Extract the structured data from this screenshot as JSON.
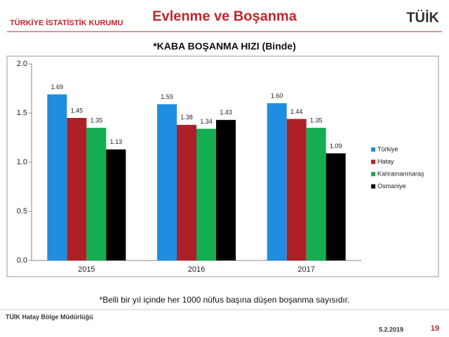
{
  "header": {
    "org": "TÜRKİYE İSTATİSTİK KURUMU",
    "title": "Evlenme ve Boşanma",
    "logo": "TÜİK"
  },
  "chart_data": {
    "type": "bar",
    "title": "*KABA BOŞANMA HIZI (Binde)",
    "categories": [
      "2015",
      "2016",
      "2017"
    ],
    "series": [
      {
        "name": "Türkiye",
        "color": "#1f8ee0",
        "values": [
          1.69,
          1.59,
          1.6
        ],
        "value_labels": [
          "1.69",
          "1.59",
          "1.60"
        ]
      },
      {
        "name": "Hatay",
        "color": "#ad2027",
        "values": [
          1.45,
          1.38,
          1.44
        ],
        "value_labels": [
          "1.45",
          "1.38",
          "1.44"
        ]
      },
      {
        "name": "Kahramanmaraş",
        "color": "#14ad52",
        "values": [
          1.35,
          1.34,
          1.35
        ],
        "value_labels": [
          "1.35",
          "1.34",
          "1.35"
        ]
      },
      {
        "name": "Osmaniye",
        "color": "#000000",
        "values": [
          1.13,
          1.43,
          1.09
        ],
        "value_labels": [
          "1.13",
          "1.43",
          "1.09"
        ]
      }
    ],
    "ylim": [
      0,
      2
    ],
    "yticks": [
      {
        "value": 0,
        "label": "0.0"
      },
      {
        "value": 0.5,
        "label": "0.5"
      },
      {
        "value": 1,
        "label": "1.0"
      },
      {
        "value": 1.5,
        "label": "1.5"
      },
      {
        "value": 2,
        "label": "2.0"
      }
    ],
    "grid": false,
    "legend": "right"
  },
  "footnote": "*Belli bir yıl içinde her 1000 nüfus başına düşen boşanma sayısıdır.",
  "footer": {
    "office": "TÜİK Hatay Bölge Müdürlüğü",
    "date": "5.2.2019",
    "page": "19"
  }
}
